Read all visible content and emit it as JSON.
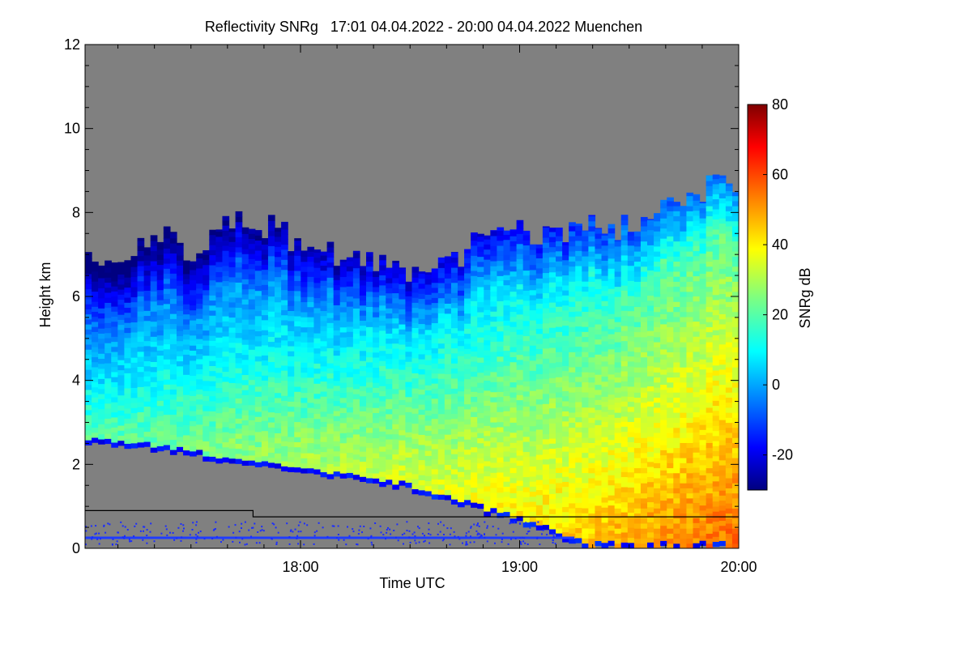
{
  "chart_data": {
    "type": "heatmap",
    "title": "Reflectivity SNRg   17:01 04.04.2022 - 20:00 04.04.2022 Muenchen",
    "xlabel": "Time UTC",
    "ylabel": "Height km",
    "xlim": [
      "17:01",
      "20:00"
    ],
    "x_ticks": [
      {
        "value": "18:00",
        "label": "18:00"
      },
      {
        "value": "19:00",
        "label": "19:00"
      },
      {
        "value": "20:00",
        "label": "20:00"
      }
    ],
    "ylim": [
      0,
      12
    ],
    "y_ticks": [
      0,
      2,
      4,
      6,
      8,
      10,
      12
    ],
    "colorbar": {
      "label": "SNRg dB",
      "range": [
        -30,
        80
      ],
      "ticks": [
        -20,
        0,
        20,
        40,
        60,
        80
      ]
    },
    "no_signal_color": "#808080",
    "echo_top_km": [
      {
        "time": "17:01",
        "km": 7.0
      },
      {
        "time": "17:10",
        "km": 6.9
      },
      {
        "time": "17:20",
        "km": 7.5
      },
      {
        "time": "17:30",
        "km": 7.0
      },
      {
        "time": "17:40",
        "km": 8.0
      },
      {
        "time": "17:50",
        "km": 7.7
      },
      {
        "time": "18:00",
        "km": 7.3
      },
      {
        "time": "18:10",
        "km": 7.0
      },
      {
        "time": "18:20",
        "km": 6.9
      },
      {
        "time": "18:30",
        "km": 6.6
      },
      {
        "time": "18:40",
        "km": 6.8
      },
      {
        "time": "18:50",
        "km": 7.3
      },
      {
        "time": "19:00",
        "km": 7.6
      },
      {
        "time": "19:10",
        "km": 7.4
      },
      {
        "time": "19:20",
        "km": 7.6
      },
      {
        "time": "19:30",
        "km": 7.6
      },
      {
        "time": "19:40",
        "km": 8.0
      },
      {
        "time": "19:50",
        "km": 8.5
      },
      {
        "time": "20:00",
        "km": 8.8
      }
    ],
    "echo_base_km": [
      {
        "time": "17:01",
        "km": 2.5
      },
      {
        "time": "17:15",
        "km": 2.4
      },
      {
        "time": "17:30",
        "km": 2.2
      },
      {
        "time": "17:45",
        "km": 2.0
      },
      {
        "time": "18:00",
        "km": 1.8
      },
      {
        "time": "18:15",
        "km": 1.6
      },
      {
        "time": "18:30",
        "km": 1.4
      },
      {
        "time": "18:45",
        "km": 1.0
      },
      {
        "time": "19:00",
        "km": 0.6
      },
      {
        "time": "19:10",
        "km": 0.3
      },
      {
        "time": "19:20",
        "km": 0.0
      },
      {
        "time": "20:00",
        "km": 0.0
      }
    ],
    "core_max_snrg_db": [
      {
        "time": "17:01",
        "value": 20
      },
      {
        "time": "18:00",
        "value": 30
      },
      {
        "time": "19:00",
        "value": 40
      },
      {
        "time": "19:30",
        "value": 48
      },
      {
        "time": "20:00",
        "value": 55
      }
    ],
    "reference_line_km": [
      {
        "from": "17:01",
        "to": "17:47",
        "km": 0.9
      },
      {
        "from": "17:47",
        "to": "20:00",
        "km": 0.75
      }
    ],
    "clutter_band_km": 0.25
  }
}
